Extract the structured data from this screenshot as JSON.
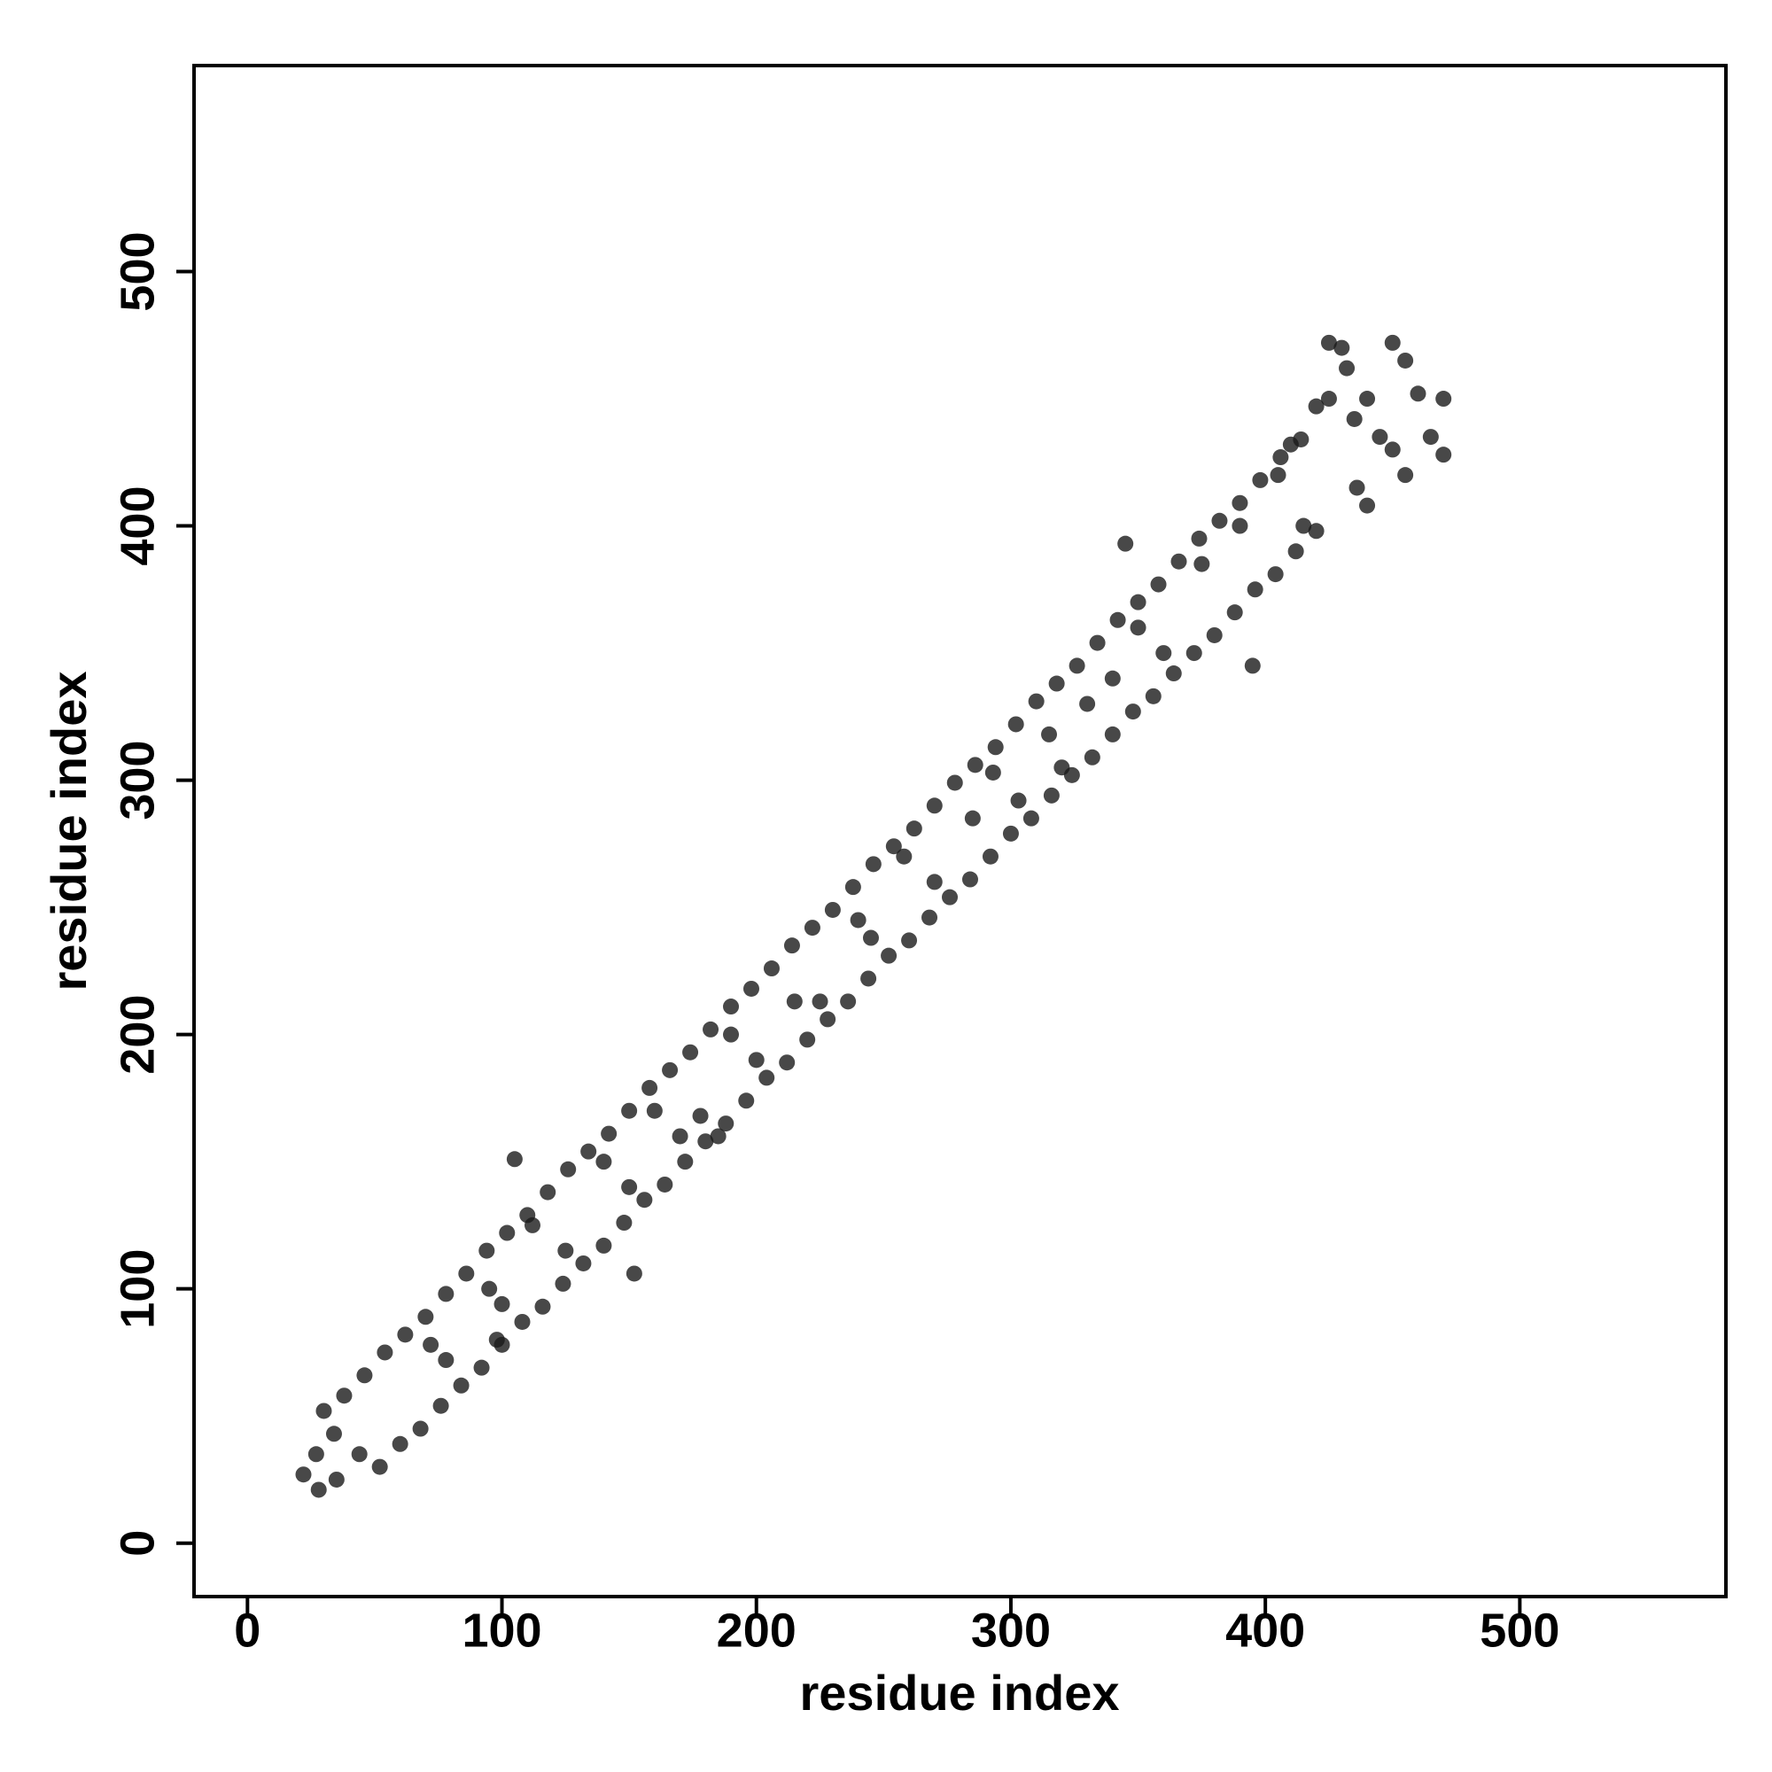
{
  "chart_data": {
    "type": "scatter",
    "xlabel": "residue index",
    "ylabel": "residue index",
    "color": "#1a1a1a",
    "xlim": [
      -21,
      581
    ],
    "ylim": [
      -21,
      581
    ],
    "xticks": [
      0,
      100,
      200,
      300,
      400,
      500
    ],
    "yticks": [
      0,
      100,
      200,
      300,
      400,
      500
    ],
    "x": [
      30,
      38,
      46,
      54,
      62,
      70,
      78,
      86,
      94,
      102,
      110,
      118,
      126,
      134,
      142,
      150,
      158,
      166,
      174,
      182,
      190,
      198,
      206,
      214,
      222,
      230,
      238,
      246,
      254,
      262,
      270,
      278,
      286,
      294,
      302,
      310,
      318,
      326,
      334,
      342,
      350,
      358,
      366,
      374,
      382,
      390,
      398,
      406,
      414,
      52,
      60,
      68,
      76,
      84,
      92,
      100,
      108,
      116,
      124,
      132,
      140,
      148,
      156,
      164,
      172,
      180,
      188,
      196,
      204,
      212,
      220,
      228,
      236,
      244,
      252,
      260,
      268,
      276,
      284,
      292,
      300,
      308,
      316,
      324,
      332,
      340,
      348,
      356,
      364,
      372,
      380,
      388,
      396,
      404,
      412,
      420,
      22,
      28,
      27,
      35,
      34,
      44,
      72,
      78,
      95,
      98,
      100,
      105,
      112,
      125,
      140,
      150,
      152,
      160,
      170,
      178,
      185,
      190,
      200,
      215,
      225,
      240,
      245,
      258,
      270,
      285,
      293,
      303,
      315,
      320,
      330,
      340,
      345,
      350,
      360,
      375,
      395,
      390,
      405,
      410,
      415,
      420,
      425,
      425,
      430,
      432,
      435,
      440,
      436,
      440,
      445,
      450,
      450,
      455,
      455,
      460,
      465,
      470,
      470
    ],
    "y": [
      52,
      58,
      66,
      75,
      82,
      89,
      98,
      106,
      115,
      122,
      129,
      138,
      147,
      154,
      161,
      170,
      179,
      186,
      193,
      202,
      211,
      218,
      226,
      235,
      242,
      249,
      258,
      267,
      274,
      281,
      290,
      299,
      306,
      313,
      322,
      331,
      338,
      345,
      354,
      363,
      370,
      377,
      386,
      395,
      402,
      409,
      418,
      427,
      434,
      30,
      39,
      45,
      54,
      62,
      69,
      78,
      87,
      93,
      102,
      110,
      117,
      126,
      135,
      141,
      150,
      158,
      165,
      174,
      183,
      189,
      198,
      206,
      213,
      222,
      231,
      237,
      246,
      254,
      261,
      270,
      279,
      285,
      294,
      302,
      309,
      318,
      327,
      333,
      342,
      350,
      357,
      366,
      375,
      381,
      390,
      398,
      27,
      21,
      35,
      25,
      43,
      35,
      78,
      72,
      100,
      80,
      94,
      151,
      125,
      115,
      150,
      140,
      106,
      170,
      160,
      168,
      160,
      200,
      190,
      213,
      213,
      245,
      238,
      270,
      260,
      285,
      303,
      292,
      318,
      305,
      330,
      340,
      393,
      360,
      350,
      385,
      345,
      400,
      420,
      432,
      400,
      447,
      450,
      472,
      470,
      462,
      442,
      408,
      415,
      450,
      435,
      472,
      430,
      465,
      420,
      452,
      435,
      450,
      428
    ]
  }
}
